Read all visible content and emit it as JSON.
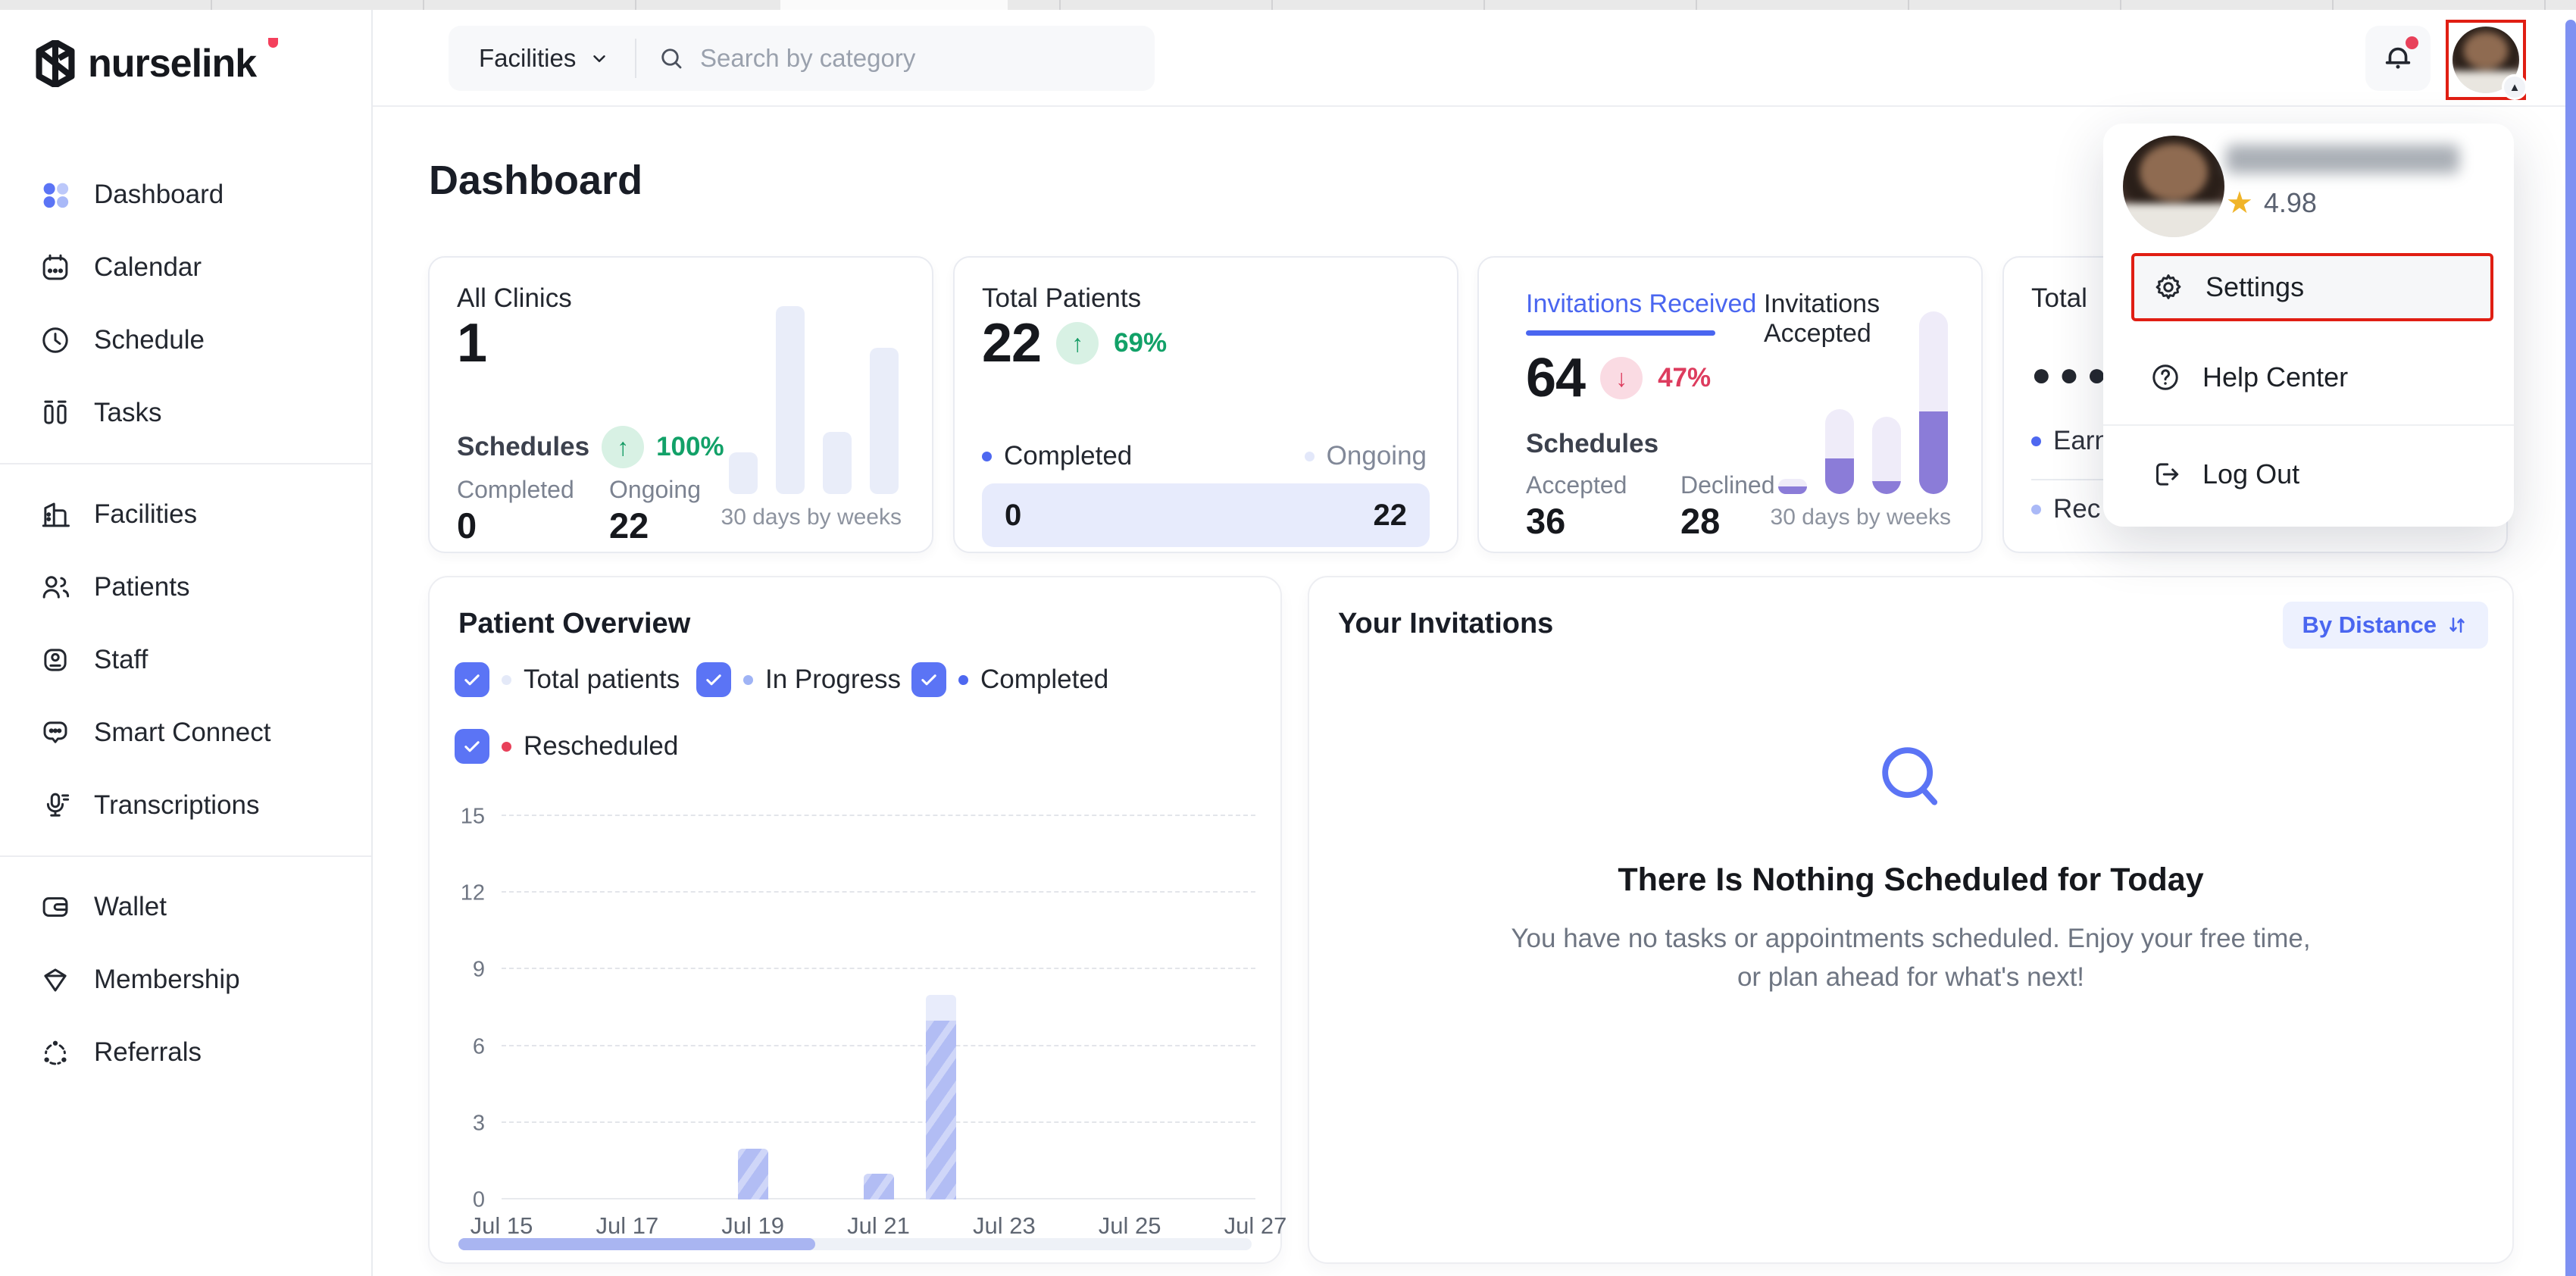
{
  "brand": {
    "name": "nurselink",
    "accent": "#f4405c"
  },
  "topbar": {
    "category_selector": "Facilities",
    "search_placeholder": "Search by category",
    "notification_dot_color": "#e8415a"
  },
  "sidebar": {
    "sections": [
      {
        "items": [
          {
            "icon": "dashboard-icon",
            "label": "Dashboard",
            "active": true
          },
          {
            "icon": "calendar-icon",
            "label": "Calendar"
          },
          {
            "icon": "clock-icon",
            "label": "Schedule"
          },
          {
            "icon": "tasks-icon",
            "label": "Tasks"
          }
        ]
      },
      {
        "items": [
          {
            "icon": "building-icon",
            "label": "Facilities"
          },
          {
            "icon": "people-icon",
            "label": "Patients"
          },
          {
            "icon": "badge-icon",
            "label": "Staff"
          },
          {
            "icon": "chat-icon",
            "label": "Smart Connect"
          },
          {
            "icon": "microphone-icon",
            "label": "Transcriptions"
          }
        ]
      },
      {
        "items": [
          {
            "icon": "wallet-icon",
            "label": "Wallet"
          },
          {
            "icon": "diamond-icon",
            "label": "Membership"
          },
          {
            "icon": "share-icon",
            "label": "Referrals"
          }
        ]
      }
    ]
  },
  "page": {
    "title": "Dashboard"
  },
  "cards": {
    "all_clinics": {
      "title": "All Clinics",
      "value": "1",
      "metric_label": "Schedules",
      "trend_pct": "100%",
      "trend_dir": "up",
      "completed_label": "Completed",
      "completed_value": "0",
      "ongoing_label": "Ongoing",
      "ongoing_value": "22",
      "caption": "30 days by weeks"
    },
    "total_patients": {
      "title": "Total Patients",
      "value": "22",
      "trend_pct": "69%",
      "trend_dir": "up",
      "completed_label": "Completed",
      "ongoing_label": "Ongoing",
      "bar_left": "0",
      "bar_right": "22",
      "completed_dot": "#4e68f0",
      "ongoing_dot": "#e3e8fa"
    },
    "invitations": {
      "tabs": [
        "Invitations Received",
        "Invitations Accepted"
      ],
      "active_tab": 0,
      "value": "64",
      "trend_pct": "47%",
      "trend_dir": "down",
      "metric_label": "Schedules",
      "accepted_label": "Accepted",
      "accepted_value": "36",
      "declined_label": "Declined",
      "declined_value": "28",
      "caption": "30 days by weeks"
    },
    "total_hidden": {
      "title_fragment": "Total",
      "masked_value": "●●●●",
      "legend_fragment_1": "Earn",
      "legend_fragment_2": "Rec",
      "dot1": "#4e68f0",
      "dot2": "#aab9f7"
    }
  },
  "user_menu": {
    "rating": "4.98",
    "items": {
      "settings": "Settings",
      "help": "Help Center",
      "logout": "Log Out"
    },
    "highlight_color": "#e01e13"
  },
  "patient_overview": {
    "title": "Patient Overview",
    "filters": [
      {
        "label": "Total patients",
        "dot": "#e4e9f8",
        "checked": true
      },
      {
        "label": "In Progress",
        "dot": "#9fb3f5",
        "checked": true
      },
      {
        "label": "Completed",
        "dot": "#4e68f0",
        "checked": true
      },
      {
        "label": "Rescheduled",
        "dot": "#e8415a",
        "checked": true
      }
    ],
    "scrollbar_pct": 45
  },
  "invitations_panel": {
    "title": "Your Invitations",
    "sort_label": "By Distance",
    "empty_title": "There Is Nothing Scheduled for Today",
    "empty_body_line1": "You have no tasks or appointments scheduled. Enjoy your free time,",
    "empty_body_line2": "or plan ahead for what's next!"
  },
  "chart_data": [
    {
      "name": "patient-overview",
      "type": "bar",
      "labels": [
        "Jul 15",
        "Jul 17",
        "Jul 19",
        "Jul 21",
        "Jul 23",
        "Jul 25",
        "Jul 27"
      ],
      "days_span": 12,
      "yticks": [
        0,
        3,
        6,
        9,
        12,
        15
      ],
      "ymax": 15,
      "bars": [
        {
          "day": "Jul 19",
          "day_index": 4,
          "value": 2,
          "overlay": 0
        },
        {
          "day": "Jul 21",
          "day_index": 6,
          "value": 1,
          "overlay": 0
        },
        {
          "day": "Jul 22",
          "day_index": 7,
          "value": 7,
          "overlay": 1
        }
      ],
      "grid": "dashed"
    },
    {
      "name": "all-clinics-spark",
      "type": "bar",
      "values_pct": [
        22,
        100,
        33,
        78
      ],
      "bar_color": "#e9edf9",
      "caption": "30 days by weeks"
    },
    {
      "name": "invitations-spark",
      "type": "stacked-bar",
      "totals_pct": [
        8,
        45,
        41,
        97
      ],
      "fills_pct": [
        4,
        19,
        7,
        44
      ],
      "fill_color": "#8b7cd8",
      "track_color": "#efecf9",
      "caption": "30 days by weeks"
    }
  ]
}
